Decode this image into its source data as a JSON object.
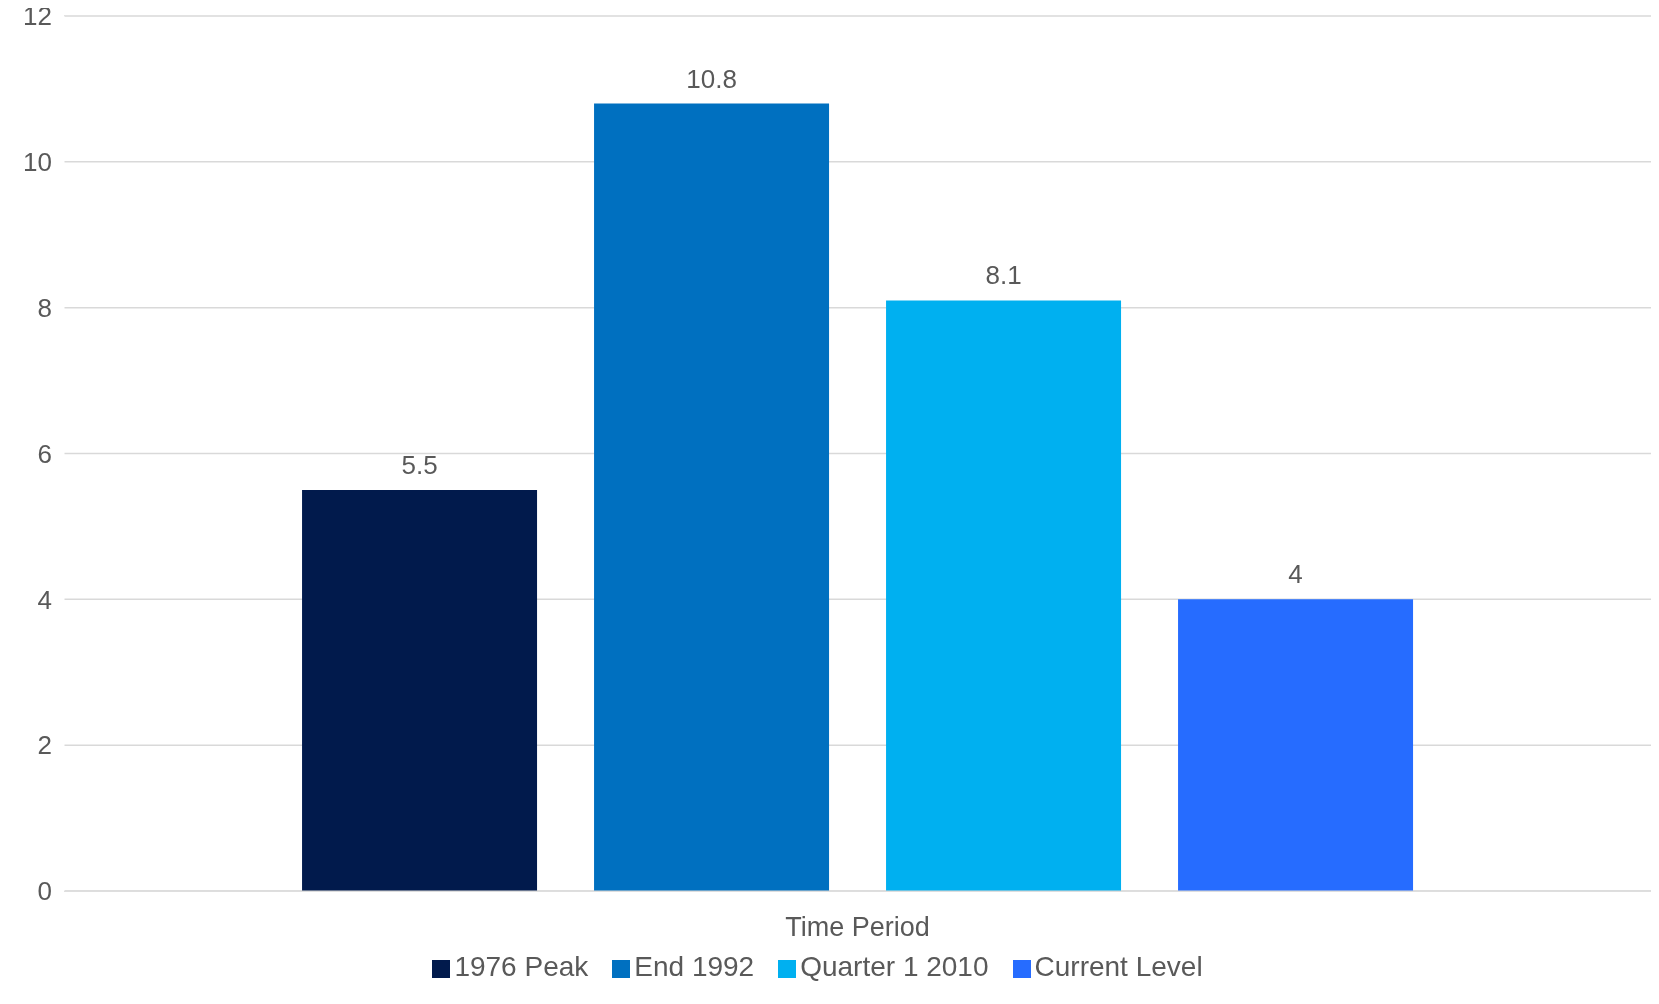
{
  "chart_data": {
    "type": "bar",
    "categories": [
      "Time Period"
    ],
    "series": [
      {
        "name": "1976 Peak",
        "color": "#011a4c",
        "values": [
          5.5
        ]
      },
      {
        "name": "End 1992",
        "color": "#0070c0",
        "values": [
          10.8
        ]
      },
      {
        "name": "Quarter 1 2010",
        "color": "#00b0f0",
        "values": [
          8.1
        ]
      },
      {
        "name": "Current Level",
        "color": "#266cff",
        "values": [
          4
        ]
      }
    ],
    "ylim": [
      0,
      12
    ],
    "yticks": [
      0,
      2,
      4,
      6,
      8,
      10,
      12
    ],
    "grid": "y",
    "legend": "bottom",
    "data_labels": true
  }
}
